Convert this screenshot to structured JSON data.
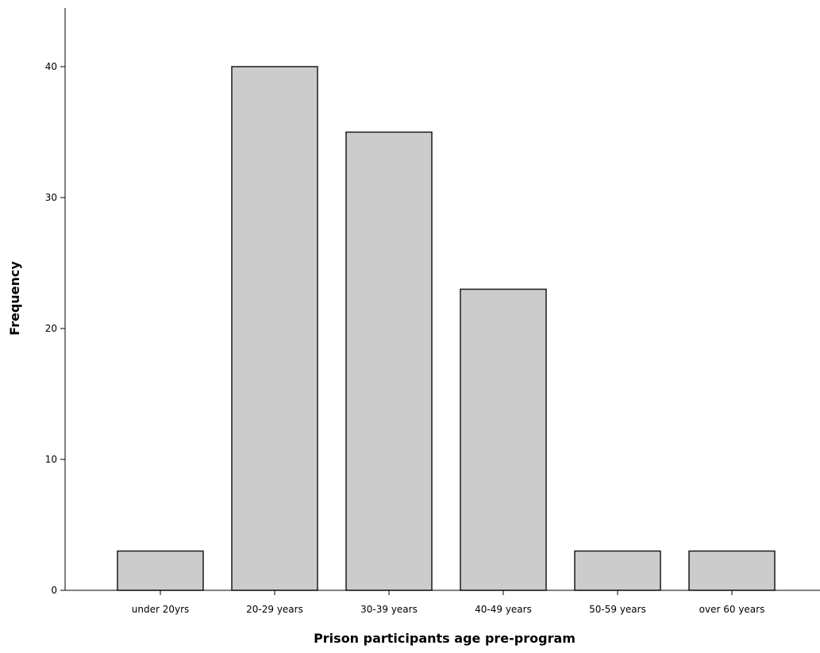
{
  "chart_data": {
    "type": "bar",
    "title": "",
    "xlabel": "Prison participants age pre-program",
    "ylabel": "Frequency",
    "categories": [
      "under 20yrs",
      "20-29 years",
      "30-39 years",
      "40-49 years",
      "50-59 years",
      "over 60 years"
    ],
    "values": [
      3,
      40,
      35,
      23,
      3,
      3
    ],
    "ylim": [
      0,
      40
    ],
    "yticks": [
      0,
      10,
      20,
      30,
      40
    ],
    "grid": false,
    "bar_color": "#cccccc",
    "bar_edge_color": "#1a1a1a"
  }
}
